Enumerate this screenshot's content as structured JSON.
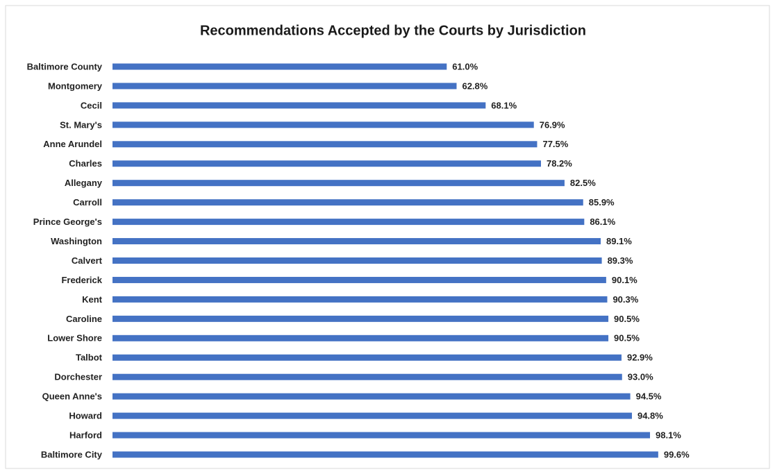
{
  "chart_data": {
    "type": "bar",
    "orientation": "horizontal",
    "title": "Recommendations Accepted by the Courts by Jurisdiction",
    "categories": [
      "Baltimore County",
      "Montgomery",
      "Cecil",
      "St. Mary's",
      "Anne Arundel",
      "Charles",
      "Allegany",
      "Carroll",
      "Prince George's",
      "Washington",
      "Calvert",
      "Frederick",
      "Kent",
      "Caroline",
      "Lower Shore",
      "Talbot",
      "Dorchester",
      "Queen Anne's",
      "Howard",
      "Harford",
      "Baltimore City"
    ],
    "values": [
      61.0,
      62.8,
      68.1,
      76.9,
      77.5,
      78.2,
      82.5,
      85.9,
      86.1,
      89.1,
      89.3,
      90.1,
      90.3,
      90.5,
      90.5,
      92.9,
      93.0,
      94.5,
      94.8,
      98.1,
      99.6
    ],
    "value_labels": [
      "61.0%",
      "62.8%",
      "68.1%",
      "76.9%",
      "77.5%",
      "78.2%",
      "82.5%",
      "85.9%",
      "86.1%",
      "89.1%",
      "89.3%",
      "90.1%",
      "90.3%",
      "90.5%",
      "90.5%",
      "92.9%",
      "93.0%",
      "94.5%",
      "94.8%",
      "98.1%",
      "99.6%"
    ],
    "color": "#4472c4",
    "xlim": [
      0,
      100
    ]
  }
}
